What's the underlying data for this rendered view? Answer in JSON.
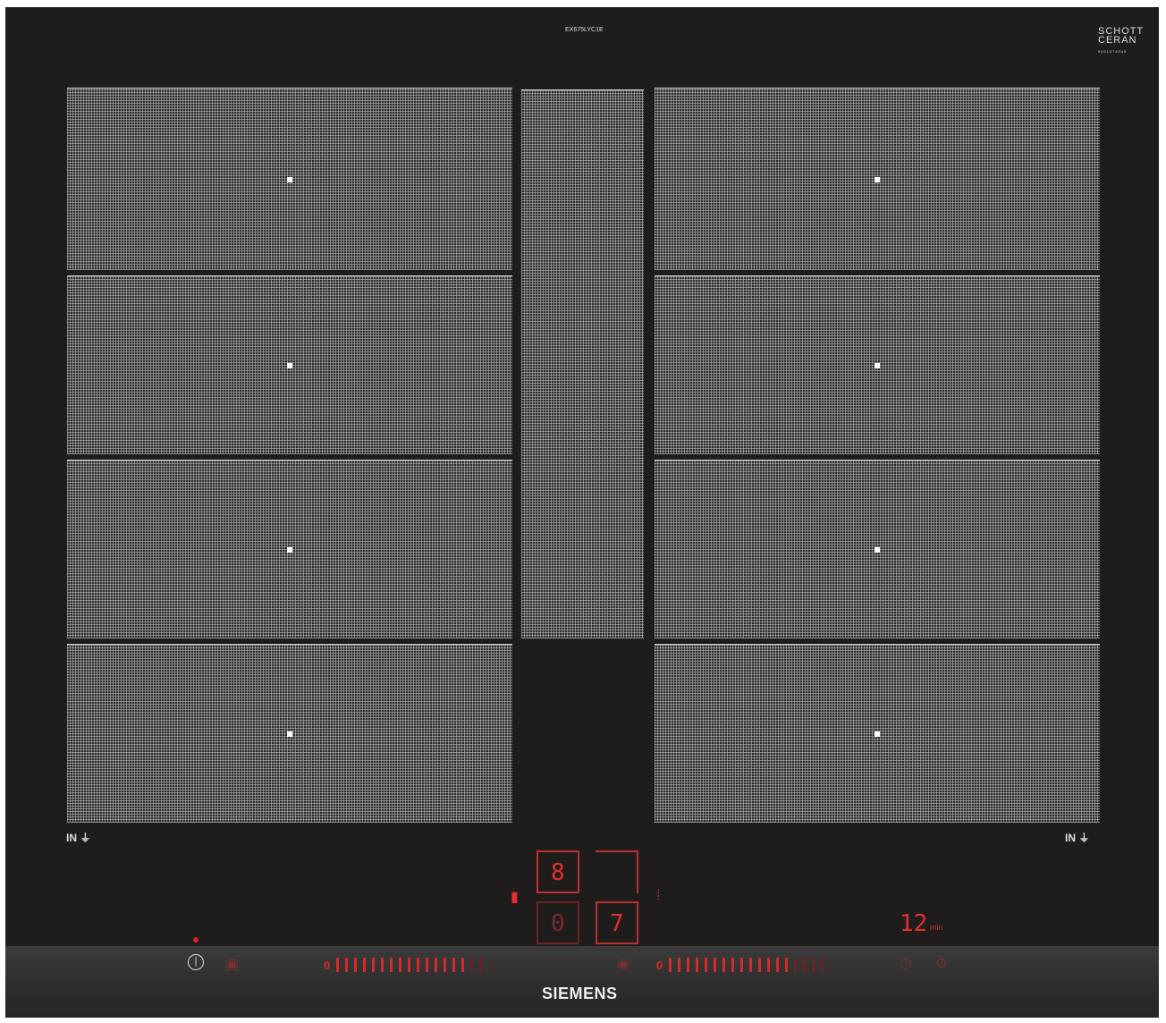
{
  "model": "EX675LYC1E",
  "brand": {
    "glass_logo_line1": "SCHOTT",
    "glass_logo_line2": "CERAN",
    "glass_serial": "9001074045",
    "maker": "SIEMENS"
  },
  "zone_labels": {
    "left": "IN",
    "right": "IN"
  },
  "displays": {
    "top_left": "8",
    "bottom_left": "0",
    "bottom_right": "7",
    "timer_value": "12",
    "timer_unit": "min"
  },
  "sliders": {
    "left": {
      "zero_label": "0",
      "segments": 17,
      "active": 15
    },
    "right": {
      "zero_label": "0",
      "segments": 18,
      "active": 14
    }
  },
  "colors": {
    "display_red": "#e03030",
    "glass": "#1f1d1c",
    "zone_grid": "#c8c8c8"
  },
  "icons": [
    "power-icon",
    "hob-icon",
    "flex-icon",
    "timer-icon",
    "stopwatch-icon",
    "pan-icon",
    "boost-icon"
  ]
}
